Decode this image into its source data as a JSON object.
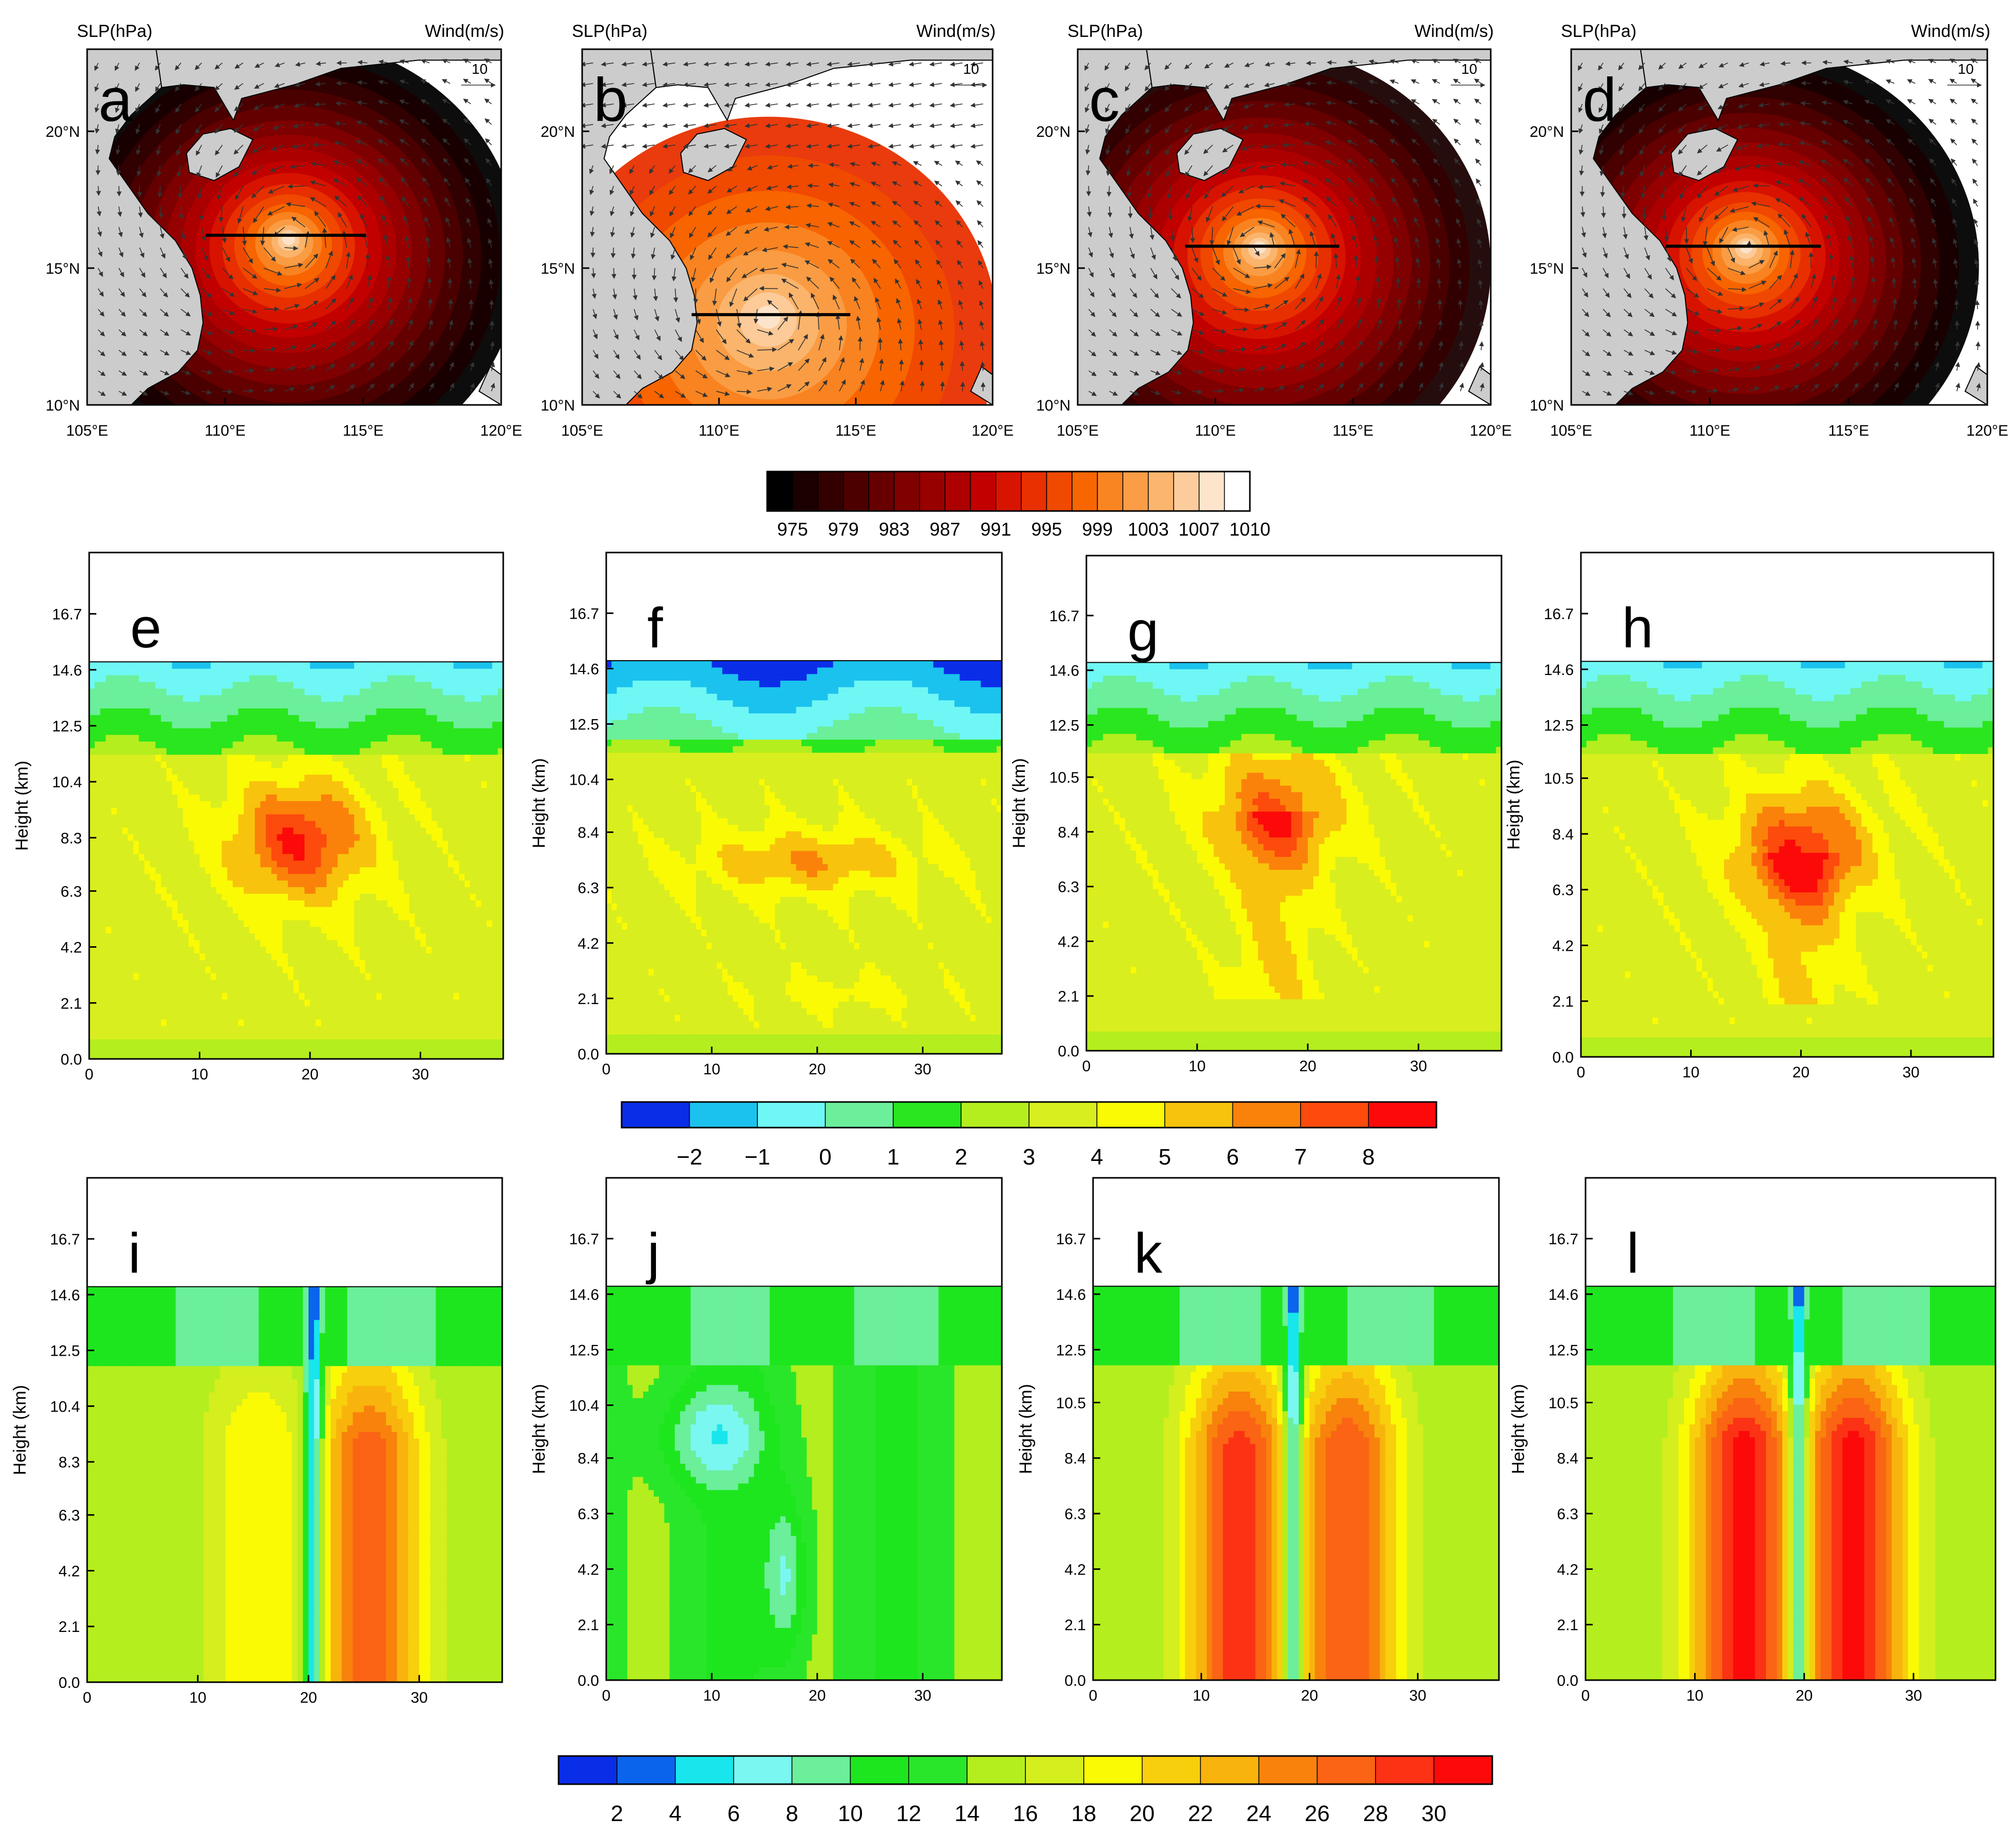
{
  "chart_data": {
    "type": "heatmap",
    "maps": {
      "header_left": "SLP(hPa)",
      "header_right": "Wind(m/s)",
      "ref_vector": "10",
      "lon_ticks": [
        "105°E",
        "110°E",
        "115°E",
        "120°E"
      ],
      "lat_ticks": [
        "10°N",
        "15°N",
        "20°N"
      ],
      "lon_range": [
        105,
        120
      ],
      "lat_range": [
        10,
        23
      ],
      "panels": [
        {
          "label": "a",
          "center_lon": 112.3,
          "center_lat": 16.1,
          "min_slp": 979,
          "section_lon": [
            109.3,
            115.1
          ],
          "section_lat": 16.2
        },
        {
          "label": "b",
          "center_lon": 111.8,
          "center_lat": 13.3,
          "min_slp": 1001,
          "section_lon": [
            109.0,
            114.8
          ],
          "section_lat": 13.3
        },
        {
          "label": "c",
          "center_lon": 111.6,
          "center_lat": 15.8,
          "min_slp": 983,
          "section_lon": [
            108.9,
            114.5
          ],
          "section_lat": 15.8
        },
        {
          "label": "d",
          "center_lon": 111.3,
          "center_lat": 15.8,
          "min_slp": 975,
          "section_lon": [
            108.4,
            114.0
          ],
          "section_lat": 15.8
        }
      ]
    },
    "slp_colorbar": {
      "tick_labels": [
        "975",
        "979",
        "983",
        "987",
        "991",
        "995",
        "999",
        "1003",
        "1007",
        "1010"
      ],
      "colors": [
        "#000000",
        "#1a0000",
        "#330000",
        "#4d0000",
        "#660000",
        "#800000",
        "#990000",
        "#ad0000",
        "#c30000",
        "#d81400",
        "#e83000",
        "#f04a00",
        "#f76600",
        "#f98522",
        "#fa9d46",
        "#fbb56e",
        "#fdcc9c",
        "#fde4cb",
        "#ffffff"
      ]
    },
    "sections_xlabels": [
      "0",
      "10",
      "20",
      "30"
    ],
    "sections_xrange": [
      0,
      37.5
    ],
    "middle_row": {
      "ylabel": "Height (km)",
      "yrange": [
        0,
        19
      ],
      "panels": [
        {
          "label": "e",
          "yticks": [
            "0.0",
            "2.1",
            "4.2",
            "6.3",
            "8.3",
            "10.4",
            "12.5",
            "14.6",
            "16.7"
          ],
          "core_x": 19,
          "core_z": 8.2,
          "core_value": 8,
          "top_km": 14.9
        },
        {
          "label": "f",
          "yticks": [
            "0.0",
            "2.1",
            "4.2",
            "6.3",
            "8.4",
            "10.4",
            "12.5",
            "14.6",
            "16.7"
          ],
          "core_x": 19,
          "core_z": 7.3,
          "core_value": 6,
          "top_km": 14.9
        },
        {
          "label": "g",
          "yticks": [
            "0.0",
            "2.1",
            "4.2",
            "6.3",
            "8.4",
            "10.5",
            "12.5",
            "14.6",
            "16.7"
          ],
          "core_x": 17,
          "core_z": 9.3,
          "core_value": 7,
          "top_km": 14.9
        },
        {
          "label": "h",
          "yticks": [
            "0.0",
            "2.1",
            "4.2",
            "6.3",
            "8.4",
            "10.5",
            "12.5",
            "14.6",
            "16.7"
          ],
          "core_x": 20,
          "core_z": 7.8,
          "core_value": 8,
          "top_km": 14.9
        }
      ],
      "colorbar": {
        "tick_labels": [
          "−2",
          "−1",
          "0",
          "1",
          "2",
          "3",
          "4",
          "5",
          "6",
          "7",
          "8"
        ],
        "colors": [
          "#0a2ee8",
          "#1bc2ee",
          "#6ff7f5",
          "#6bef9a",
          "#2ae61e",
          "#b4ee1e",
          "#d9ee1e",
          "#fafa05",
          "#f8c30c",
          "#fb820a",
          "#fc4b0c",
          "#fc0a0a"
        ]
      }
    },
    "bottom_row": {
      "ylabel": "Height (km)",
      "yrange": [
        0,
        19
      ],
      "panels": [
        {
          "label": "i",
          "yticks": [
            "0.0",
            "2.1",
            "4.2",
            "6.3",
            "8.3",
            "10.4",
            "12.5",
            "14.6",
            "16.7"
          ],
          "eye_x": 20.5,
          "left_max": 20,
          "right_max": 27
        },
        {
          "label": "j",
          "yticks": [
            "0.0",
            "2.1",
            "4.2",
            "6.3",
            "8.4",
            "10.4",
            "12.5",
            "14.6",
            "16.7"
          ],
          "eye_x": 16.5,
          "left_max": 8,
          "right_max": 14
        },
        {
          "label": "k",
          "yticks": [
            "0.0",
            "2.1",
            "4.2",
            "6.3",
            "8.4",
            "10.5",
            "12.5",
            "14.6",
            "16.7"
          ],
          "eye_x": 18.5,
          "left_max": 29,
          "right_max": 28
        },
        {
          "label": "l",
          "yticks": [
            "0.0",
            "2.1",
            "4.2",
            "6.3",
            "8.4",
            "10.5",
            "12.5",
            "14.6",
            "16.7"
          ],
          "eye_x": 19.5,
          "left_max": 31,
          "right_max": 31
        }
      ],
      "colorbar": {
        "tick_labels": [
          "2",
          "4",
          "6",
          "8",
          "10",
          "12",
          "14",
          "16",
          "18",
          "20",
          "22",
          "24",
          "26",
          "28",
          "30"
        ],
        "colors": [
          "#0a2ee8",
          "#0a64ec",
          "#18e6ec",
          "#7af7f0",
          "#6bef9a",
          "#1ee61e",
          "#2ae62a",
          "#b4ee1e",
          "#d4ee1e",
          "#fafa05",
          "#f8cf0c",
          "#f8b40c",
          "#f8820c",
          "#fa6414",
          "#fc3214",
          "#fc0a0a"
        ]
      }
    }
  }
}
